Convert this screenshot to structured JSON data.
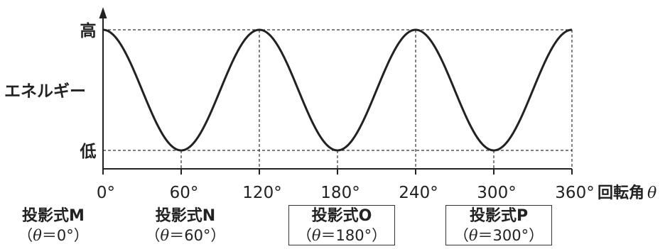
{
  "chart_data": {
    "type": "line",
    "series": [
      {
        "x": [
          0,
          10,
          20,
          30,
          40,
          50,
          60,
          70,
          80,
          90,
          100,
          110,
          120,
          130,
          140,
          150,
          160,
          170,
          180,
          190,
          200,
          210,
          220,
          230,
          240,
          250,
          260,
          270,
          280,
          290,
          300,
          310,
          320,
          330,
          340,
          350,
          360
        ],
        "y": [
          1,
          0.933,
          0.75,
          0.5,
          0.25,
          0.067,
          0,
          0.067,
          0.25,
          0.5,
          0.75,
          0.933,
          1,
          0.933,
          0.75,
          0.5,
          0.25,
          0.067,
          0,
          0.067,
          0.25,
          0.5,
          0.75,
          0.933,
          1,
          0.933,
          0.75,
          0.5,
          0.25,
          0.067,
          0,
          0.067,
          0.25,
          0.5,
          0.75,
          0.933,
          1
        ]
      }
    ],
    "xlim": [
      0,
      360
    ],
    "ylim": [
      0,
      1
    ],
    "x_ticks": [
      0,
      60,
      120,
      180,
      240,
      300,
      360
    ],
    "x_tick_labels": [
      "0°",
      "60°",
      "120°",
      "180°",
      "240°",
      "300°",
      "360°"
    ],
    "xlabel": "回転角",
    "xlabel_symbol": "θ",
    "ylabel": "エネルギー",
    "y_tick_labels": {
      "high": "高",
      "low": "低"
    },
    "reference_lines": "dashed",
    "grid": false,
    "legend": "none"
  },
  "projections": [
    {
      "name": "投影式M",
      "cond_open": "（",
      "cond_symbol": "θ",
      "cond_rest": "＝0°）",
      "boxed": false
    },
    {
      "name": "投影式N",
      "cond_open": "（",
      "cond_symbol": "θ",
      "cond_rest": "＝60°）",
      "boxed": false
    },
    {
      "name": "投影式O",
      "cond_open": "（",
      "cond_symbol": "θ",
      "cond_rest": "＝180°）",
      "boxed": true
    },
    {
      "name": "投影式P",
      "cond_open": "（",
      "cond_symbol": "θ",
      "cond_rest": "＝300°）",
      "boxed": true
    }
  ]
}
